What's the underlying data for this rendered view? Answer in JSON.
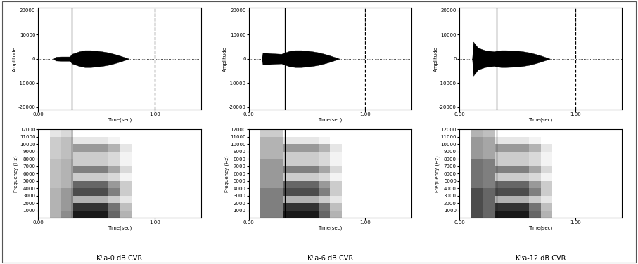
{
  "chart_data": [
    {
      "type": "area",
      "color": "#000000",
      "xlabel": "Time(sec)",
      "ylabel": "Amplitude",
      "xlim": [
        0,
        1.4
      ],
      "ylim": [
        -21000,
        21000
      ],
      "xticks": [
        {
          "value": 0,
          "label": "0.00"
        },
        {
          "value": 1,
          "label": "1.00"
        }
      ],
      "yticks": [
        -20000,
        -10000,
        0,
        10000,
        20000
      ],
      "x": [
        0.13,
        0.15,
        0.2,
        0.27,
        0.29,
        0.35,
        0.4,
        0.45,
        0.5,
        0.55,
        0.6,
        0.65,
        0.7,
        0.75,
        0.78
      ],
      "values": [
        0,
        800,
        900,
        900,
        2000,
        3000,
        3500,
        3500,
        3300,
        3000,
        2600,
        2000,
        1300,
        500,
        0
      ],
      "reference_lines": [
        {
          "x": 0.29,
          "line_style": "solid"
        },
        {
          "x": 1.0,
          "line_style": "dashed"
        }
      ]
    },
    {
      "type": "heatmap",
      "xlabel": "Time(sec)",
      "ylabel": "Frequency (Hz)",
      "caption": "Kʰa-0 dB CVR",
      "xlim": [
        0,
        1.4
      ],
      "ylim": [
        0,
        12000
      ],
      "xticks": [
        {
          "value": 0,
          "label": "0.00"
        },
        {
          "value": 1,
          "label": "1.00"
        }
      ],
      "yticks": [
        1000,
        2000,
        3000,
        4000,
        5000,
        6000,
        7000,
        8000,
        9000,
        10000,
        11000,
        12000
      ],
      "time_edges": [
        0,
        0.1,
        0.2,
        0.3,
        0.4,
        0.5,
        0.6,
        0.7,
        0.8,
        0.9,
        1.0,
        1.1,
        1.2,
        1.3,
        1.4
      ],
      "frequency_edges": [
        0,
        1000,
        2000,
        3000,
        4000,
        5000,
        6000,
        7000,
        8000,
        9000,
        10000,
        11000,
        12000
      ],
      "color_range": [
        0,
        1
      ],
      "cells": [
        [
          0,
          0.3,
          0.45,
          0.9,
          0.9,
          0.9,
          0.6,
          0.3,
          0,
          0,
          0,
          0,
          0,
          0
        ],
        [
          0,
          0.3,
          0.4,
          0.8,
          0.8,
          0.8,
          0.55,
          0.25,
          0,
          0,
          0,
          0,
          0,
          0
        ],
        [
          0,
          0.3,
          0.4,
          0.3,
          0.3,
          0.3,
          0.2,
          0.1,
          0,
          0,
          0,
          0,
          0,
          0
        ],
        [
          0,
          0.3,
          0.4,
          0.7,
          0.7,
          0.7,
          0.5,
          0.2,
          0,
          0,
          0,
          0,
          0,
          0
        ],
        [
          0,
          0.25,
          0.3,
          0.6,
          0.6,
          0.6,
          0.4,
          0.2,
          0,
          0,
          0,
          0,
          0,
          0
        ],
        [
          0,
          0.25,
          0.3,
          0.2,
          0.2,
          0.2,
          0.15,
          0.05,
          0,
          0,
          0,
          0,
          0,
          0
        ],
        [
          0,
          0.25,
          0.3,
          0.5,
          0.5,
          0.5,
          0.35,
          0.15,
          0,
          0,
          0,
          0,
          0,
          0
        ],
        [
          0,
          0.25,
          0.3,
          0.2,
          0.2,
          0.2,
          0.15,
          0.05,
          0,
          0,
          0,
          0,
          0,
          0
        ],
        [
          0,
          0.2,
          0.25,
          0.2,
          0.2,
          0.2,
          0.15,
          0.05,
          0,
          0,
          0,
          0,
          0,
          0
        ],
        [
          0,
          0.2,
          0.25,
          0.4,
          0.4,
          0.4,
          0.3,
          0.1,
          0,
          0,
          0,
          0,
          0,
          0
        ],
        [
          0,
          0.2,
          0.25,
          0.1,
          0.1,
          0.1,
          0.05,
          0,
          0,
          0,
          0,
          0,
          0,
          0
        ],
        [
          0,
          0.1,
          0.15,
          0,
          0,
          0,
          0,
          0,
          0,
          0,
          0,
          0,
          0,
          0
        ]
      ],
      "reference_lines": [
        {
          "x": 0.29,
          "line_style": "solid"
        }
      ]
    },
    {
      "type": "area",
      "color": "#000000",
      "xlabel": "Time(sec)",
      "ylabel": "Amplitude",
      "xlim": [
        0,
        1.4
      ],
      "ylim": [
        -21000,
        21000
      ],
      "xticks": [
        {
          "value": 0,
          "label": "0.00"
        },
        {
          "value": 1,
          "label": "1.00"
        }
      ],
      "yticks": [
        -20000,
        -10000,
        0,
        10000,
        20000
      ],
      "x": [
        0.11,
        0.12,
        0.2,
        0.28,
        0.31,
        0.35,
        0.4,
        0.45,
        0.5,
        0.55,
        0.6,
        0.65,
        0.7,
        0.75,
        0.78
      ],
      "values": [
        0,
        2500,
        2200,
        2000,
        2500,
        3200,
        3500,
        3500,
        3300,
        3000,
        2600,
        2000,
        1300,
        500,
        0
      ],
      "reference_lines": [
        {
          "x": 0.31,
          "line_style": "solid"
        },
        {
          "x": 1.0,
          "line_style": "dashed"
        }
      ]
    },
    {
      "type": "heatmap",
      "xlabel": "Time(sec)",
      "ylabel": "Frequency (Hz)",
      "caption": "Kʰa-6 dB CVR",
      "xlim": [
        0,
        1.4
      ],
      "ylim": [
        0,
        12000
      ],
      "xticks": [
        {
          "value": 0,
          "label": "0.00"
        },
        {
          "value": 1,
          "label": "1.00"
        }
      ],
      "yticks": [
        1000,
        2000,
        3000,
        4000,
        5000,
        6000,
        7000,
        8000,
        9000,
        10000,
        11000,
        12000
      ],
      "time_edges": [
        0,
        0.1,
        0.2,
        0.3,
        0.4,
        0.5,
        0.6,
        0.7,
        0.8,
        0.9,
        1.0,
        1.1,
        1.2,
        1.3,
        1.4
      ],
      "frequency_edges": [
        0,
        1000,
        2000,
        3000,
        4000,
        5000,
        6000,
        7000,
        8000,
        9000,
        10000,
        11000,
        12000
      ],
      "color_range": [
        0,
        1
      ],
      "cells": [
        [
          0,
          0.5,
          0.5,
          0.9,
          0.9,
          0.9,
          0.6,
          0.3,
          0,
          0,
          0,
          0,
          0,
          0
        ],
        [
          0,
          0.5,
          0.5,
          0.8,
          0.8,
          0.8,
          0.55,
          0.25,
          0,
          0,
          0,
          0,
          0,
          0
        ],
        [
          0,
          0.5,
          0.5,
          0.3,
          0.3,
          0.3,
          0.2,
          0.1,
          0,
          0,
          0,
          0,
          0,
          0
        ],
        [
          0,
          0.5,
          0.5,
          0.7,
          0.7,
          0.7,
          0.5,
          0.2,
          0,
          0,
          0,
          0,
          0,
          0
        ],
        [
          0,
          0.4,
          0.4,
          0.6,
          0.6,
          0.6,
          0.4,
          0.2,
          0,
          0,
          0,
          0,
          0,
          0
        ],
        [
          0,
          0.4,
          0.4,
          0.2,
          0.2,
          0.2,
          0.15,
          0.05,
          0,
          0,
          0,
          0,
          0,
          0
        ],
        [
          0,
          0.4,
          0.4,
          0.5,
          0.5,
          0.5,
          0.35,
          0.15,
          0,
          0,
          0,
          0,
          0,
          0
        ],
        [
          0,
          0.4,
          0.4,
          0.2,
          0.2,
          0.2,
          0.15,
          0.05,
          0,
          0,
          0,
          0,
          0,
          0
        ],
        [
          0,
          0.3,
          0.3,
          0.2,
          0.2,
          0.2,
          0.15,
          0.05,
          0,
          0,
          0,
          0,
          0,
          0
        ],
        [
          0,
          0.3,
          0.3,
          0.4,
          0.4,
          0.4,
          0.3,
          0.1,
          0,
          0,
          0,
          0,
          0,
          0
        ],
        [
          0,
          0.3,
          0.3,
          0.1,
          0.1,
          0.1,
          0.05,
          0,
          0,
          0,
          0,
          0,
          0,
          0
        ],
        [
          0,
          0.2,
          0.2,
          0,
          0,
          0,
          0,
          0,
          0,
          0,
          0,
          0,
          0,
          0
        ]
      ],
      "reference_lines": [
        {
          "x": 0.31,
          "line_style": "solid"
        }
      ]
    },
    {
      "type": "area",
      "color": "#000000",
      "xlabel": "Time(sec)",
      "ylabel": "Amplitude",
      "xlim": [
        0,
        1.4
      ],
      "ylim": [
        -21000,
        21000
      ],
      "xticks": [
        {
          "value": 0,
          "label": "0.00"
        },
        {
          "value": 1,
          "label": "1.00"
        }
      ],
      "yticks": [
        -20000,
        -10000,
        0,
        10000,
        20000
      ],
      "x": [
        0.11,
        0.12,
        0.16,
        0.22,
        0.3,
        0.32,
        0.36,
        0.4,
        0.45,
        0.5,
        0.55,
        0.6,
        0.65,
        0.7,
        0.75,
        0.78
      ],
      "values": [
        0,
        7000,
        4500,
        3500,
        3000,
        3300,
        3500,
        3500,
        3400,
        3300,
        3000,
        2600,
        2000,
        1300,
        500,
        0
      ],
      "reference_lines": [
        {
          "x": 0.32,
          "line_style": "solid"
        },
        {
          "x": 1.0,
          "line_style": "dashed"
        }
      ]
    },
    {
      "type": "heatmap",
      "xlabel": "Time(sec)",
      "ylabel": "Frequency (Hz)",
      "caption": "Kʰa-12 dB CVR",
      "xlim": [
        0,
        1.4
      ],
      "ylim": [
        0,
        12000
      ],
      "xticks": [
        {
          "value": 0,
          "label": "0.00"
        },
        {
          "value": 1,
          "label": "1.00"
        }
      ],
      "yticks": [
        1000,
        2000,
        3000,
        4000,
        5000,
        6000,
        7000,
        8000,
        9000,
        10000,
        11000,
        12000
      ],
      "time_edges": [
        0,
        0.1,
        0.2,
        0.3,
        0.4,
        0.5,
        0.6,
        0.7,
        0.8,
        0.9,
        1.0,
        1.1,
        1.2,
        1.3,
        1.4
      ],
      "frequency_edges": [
        0,
        1000,
        2000,
        3000,
        4000,
        5000,
        6000,
        7000,
        8000,
        9000,
        10000,
        11000,
        12000
      ],
      "color_range": [
        0,
        1
      ],
      "cells": [
        [
          0,
          0.7,
          0.6,
          0.9,
          0.9,
          0.9,
          0.6,
          0.3,
          0,
          0,
          0,
          0,
          0,
          0
        ],
        [
          0,
          0.7,
          0.6,
          0.8,
          0.8,
          0.8,
          0.55,
          0.25,
          0,
          0,
          0,
          0,
          0,
          0
        ],
        [
          0,
          0.7,
          0.6,
          0.3,
          0.3,
          0.3,
          0.2,
          0.1,
          0,
          0,
          0,
          0,
          0,
          0
        ],
        [
          0,
          0.7,
          0.6,
          0.7,
          0.7,
          0.7,
          0.5,
          0.2,
          0,
          0,
          0,
          0,
          0,
          0
        ],
        [
          0,
          0.55,
          0.5,
          0.6,
          0.6,
          0.6,
          0.4,
          0.2,
          0,
          0,
          0,
          0,
          0,
          0
        ],
        [
          0,
          0.55,
          0.5,
          0.2,
          0.2,
          0.2,
          0.15,
          0.05,
          0,
          0,
          0,
          0,
          0,
          0
        ],
        [
          0,
          0.55,
          0.5,
          0.5,
          0.5,
          0.5,
          0.35,
          0.15,
          0,
          0,
          0,
          0,
          0,
          0
        ],
        [
          0,
          0.55,
          0.5,
          0.2,
          0.2,
          0.2,
          0.15,
          0.05,
          0,
          0,
          0,
          0,
          0,
          0
        ],
        [
          0,
          0.4,
          0.35,
          0.2,
          0.2,
          0.2,
          0.15,
          0.05,
          0,
          0,
          0,
          0,
          0,
          0
        ],
        [
          0,
          0.4,
          0.35,
          0.4,
          0.4,
          0.4,
          0.3,
          0.1,
          0,
          0,
          0,
          0,
          0,
          0
        ],
        [
          0,
          0.4,
          0.35,
          0.1,
          0.1,
          0.1,
          0.05,
          0,
          0,
          0,
          0,
          0,
          0,
          0
        ],
        [
          0,
          0.3,
          0.25,
          0,
          0,
          0,
          0,
          0,
          0,
          0,
          0,
          0,
          0,
          0
        ]
      ],
      "reference_lines": [
        {
          "x": 0.32,
          "line_style": "solid"
        }
      ]
    }
  ]
}
